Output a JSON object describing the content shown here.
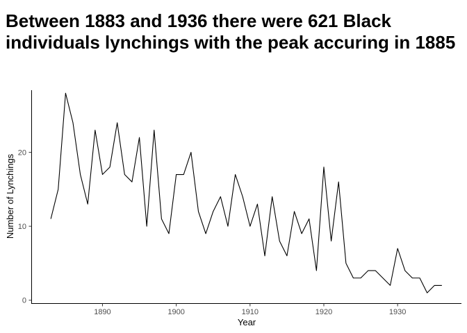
{
  "chart_data": {
    "type": "line",
    "title": "Between 1883 and 1936 there were 621 Black individuals lynchings with the peak accuring in 1885",
    "xlabel": "Year",
    "ylabel": "Number of Lynchings",
    "xlim": [
      1880.35,
      1938.65
    ],
    "ylim": [
      -0.4,
      28.4
    ],
    "x_ticks": [
      1890,
      1900,
      1910,
      1920,
      1930
    ],
    "y_ticks": [
      0,
      10,
      20
    ],
    "grid": false,
    "series": [
      {
        "x": [
          1883,
          1884,
          1885,
          1886,
          1887,
          1888,
          1889,
          1890,
          1891,
          1892,
          1893,
          1894,
          1895,
          1896,
          1897,
          1898,
          1899,
          1900,
          1901,
          1902,
          1903,
          1904,
          1905,
          1906,
          1907,
          1908,
          1909,
          1910,
          1911,
          1912,
          1913,
          1914,
          1915,
          1916,
          1917,
          1918,
          1919,
          1920,
          1921,
          1922,
          1923,
          1924,
          1925,
          1926,
          1927,
          1928,
          1929,
          1930,
          1931,
          1932,
          1933,
          1934,
          1935,
          1936
        ],
        "values": [
          11,
          15,
          28,
          24,
          17,
          13,
          23,
          17,
          18,
          24,
          17,
          16,
          22,
          10,
          23,
          11,
          9,
          17,
          17,
          20,
          12,
          9,
          12,
          14,
          10,
          17,
          14,
          10,
          13,
          6,
          14,
          8,
          6,
          12,
          9,
          11,
          4,
          18,
          8,
          16,
          5,
          3,
          3,
          4,
          4,
          3,
          2,
          7,
          4,
          3,
          3,
          1,
          2,
          2
        ],
        "color": "#000000"
      }
    ]
  }
}
